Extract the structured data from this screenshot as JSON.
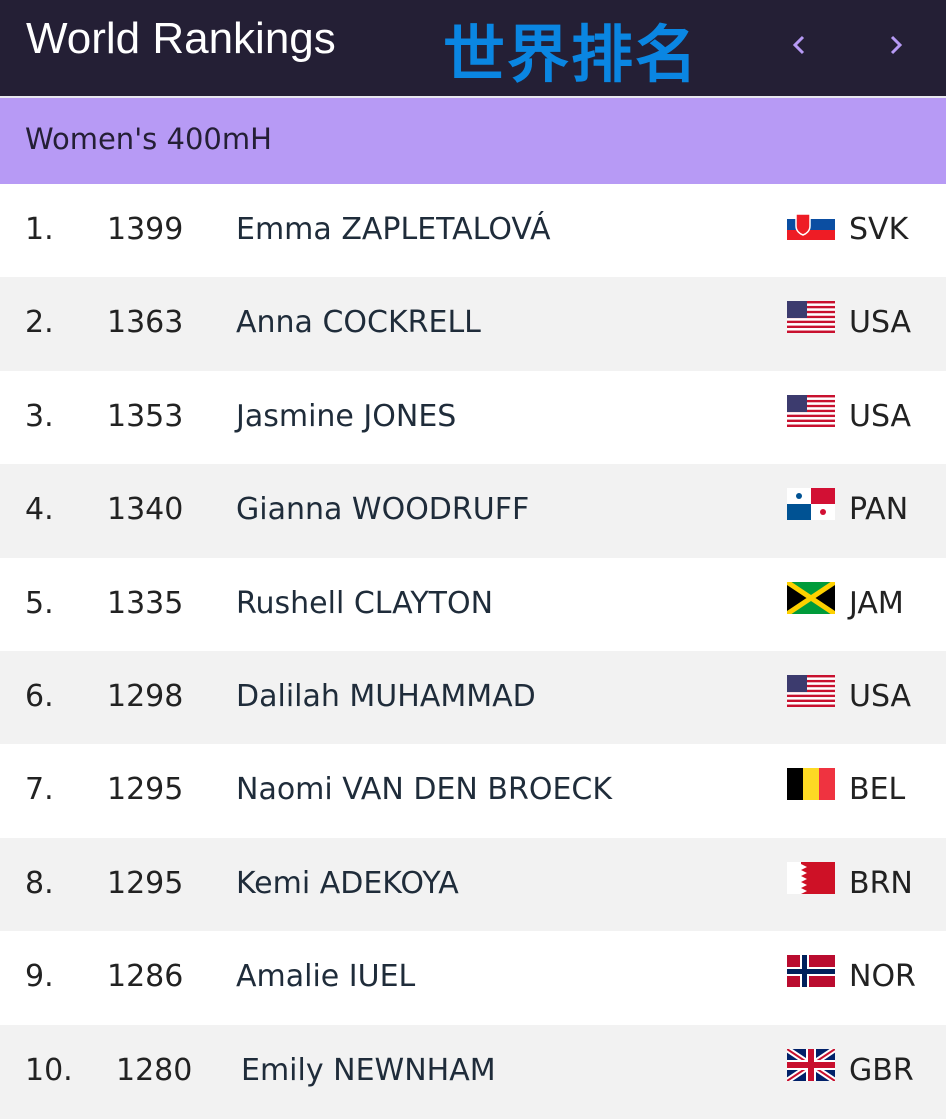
{
  "header": {
    "title": "World Rankings",
    "subtitle": "世界排名"
  },
  "event": "Women's 400mH",
  "rows": [
    {
      "rank": "1.",
      "points": 1399,
      "name": "Emma ZAPLETALOVÁ",
      "country": "SVK"
    },
    {
      "rank": "2.",
      "points": 1363,
      "name": "Anna COCKRELL",
      "country": "USA"
    },
    {
      "rank": "3.",
      "points": 1353,
      "name": "Jasmine JONES",
      "country": "USA"
    },
    {
      "rank": "4.",
      "points": 1340,
      "name": "Gianna WOODRUFF",
      "country": "PAN"
    },
    {
      "rank": "5.",
      "points": 1335,
      "name": "Rushell CLAYTON",
      "country": "JAM"
    },
    {
      "rank": "6.",
      "points": 1298,
      "name": "Dalilah MUHAMMAD",
      "country": "USA"
    },
    {
      "rank": "7.",
      "points": 1295,
      "name": "Naomi VAN DEN BROECK",
      "country": "BEL"
    },
    {
      "rank": "8.",
      "points": 1295,
      "name": "Kemi ADEKOYA",
      "country": "BRN"
    },
    {
      "rank": "9.",
      "points": 1286,
      "name": "Amalie IUEL",
      "country": "NOR"
    },
    {
      "rank": "10.",
      "points": 1280,
      "name": "Emily NEWNHAM",
      "country": "GBR"
    }
  ]
}
